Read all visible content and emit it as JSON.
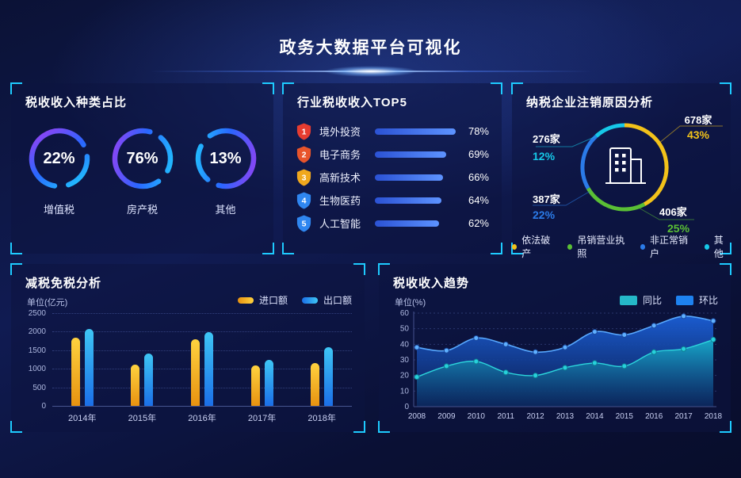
{
  "header": {
    "title": "政务大数据平台可视化"
  },
  "colors": {
    "accent": "#1ecbff",
    "background": "#0b1236",
    "panel": "#0d1440"
  },
  "chart_data": [
    {
      "type": "donut",
      "title": "税收收入种类占比",
      "items": [
        {
          "label": "增值税",
          "value": 22,
          "display": "22%"
        },
        {
          "label": "房产税",
          "value": 76,
          "display": "76%"
        },
        {
          "label": "其他",
          "value": 13,
          "display": "13%"
        }
      ],
      "ring_gradient": [
        "#a13df2",
        "#2a66ff",
        "#1fd2ff"
      ]
    },
    {
      "type": "bar",
      "orientation": "horizontal",
      "title": "行业税收收入TOP5",
      "items": [
        {
          "rank": "1",
          "label": "境外投资",
          "value": 78,
          "display": "78%",
          "badge_color": "#e63c30"
        },
        {
          "rank": "2",
          "label": "电子商务",
          "value": 69,
          "display": "69%",
          "badge_color": "#e8542b"
        },
        {
          "rank": "3",
          "label": "高新技术",
          "value": 66,
          "display": "66%",
          "badge_color": "#f0a81e"
        },
        {
          "rank": "4",
          "label": "生物医药",
          "value": 64,
          "display": "64%",
          "badge_color": "#2f86f0"
        },
        {
          "rank": "5",
          "label": "人工智能",
          "value": 62,
          "display": "62%",
          "badge_color": "#2f86f0"
        }
      ],
      "bar_gradient": [
        "#2b52d4",
        "#5d93ff"
      ]
    },
    {
      "type": "pie",
      "title": "纳税企业注销原因分析",
      "slices": [
        {
          "label": "依法破产",
          "count": "678家",
          "pct": 43,
          "display": "43%",
          "color": "#f2c21a"
        },
        {
          "label": "吊销营业执照",
          "count": "406家",
          "pct": 25,
          "display": "25%",
          "color": "#5abf35"
        },
        {
          "label": "非正常销户",
          "count": "387家",
          "pct": 22,
          "display": "22%",
          "color": "#2b7be8"
        },
        {
          "label": "其他",
          "count": "276家",
          "pct": 12,
          "display": "12%",
          "color": "#16c8e8"
        }
      ],
      "center_icon": "building-icon"
    },
    {
      "type": "bar",
      "orientation": "vertical",
      "title": "减税免税分析",
      "unit": "单位(亿元)",
      "categories": [
        "2014年",
        "2015年",
        "2016年",
        "2017年",
        "2018年"
      ],
      "series": [
        {
          "name": "进口额",
          "values": [
            1830,
            1120,
            1790,
            1080,
            1150
          ],
          "gradient": [
            "#e89210",
            "#ffd23f"
          ]
        },
        {
          "name": "出口额",
          "values": [
            2080,
            1400,
            1980,
            1230,
            1580
          ],
          "gradient": [
            "#1b6fe8",
            "#3ec6f5"
          ]
        }
      ],
      "ylim": [
        0,
        2500
      ],
      "yticks": [
        0,
        500,
        1000,
        1500,
        2000,
        2500
      ],
      "grid": "dotted",
      "legend_position": "top-right"
    },
    {
      "type": "area",
      "title": "税收收入趋势",
      "unit": "单位(%)",
      "categories": [
        "2008",
        "2009",
        "2010",
        "2011",
        "2012",
        "2013",
        "2014",
        "2015",
        "2016",
        "2017",
        "2018"
      ],
      "series": [
        {
          "name": "同比",
          "color": "#25b8c8",
          "line_color": "#2cd5dc",
          "values": [
            19,
            26,
            29,
            22,
            20,
            25,
            28,
            26,
            35,
            37,
            43
          ]
        },
        {
          "name": "环比",
          "color": "#1e82f0",
          "line_color": "#57a8ff",
          "values": [
            38,
            36,
            44,
            40,
            35,
            38,
            48,
            46,
            52,
            58,
            55
          ]
        }
      ],
      "ylim": [
        0,
        60
      ],
      "yticks": [
        0,
        10,
        20,
        30,
        40,
        50,
        60
      ],
      "grid": "dotted",
      "legend_position": "top-right"
    }
  ]
}
